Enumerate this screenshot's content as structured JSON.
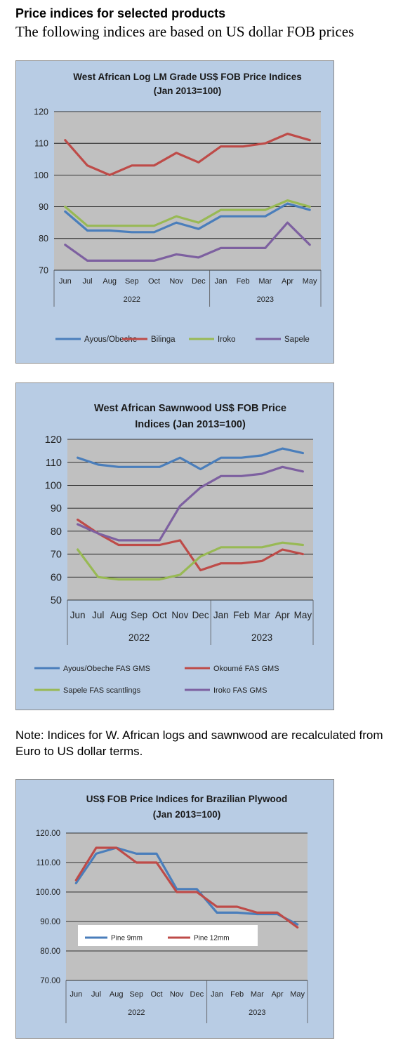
{
  "page": {
    "heading": "Price indices for selected products",
    "subheading": "The following indices are based on US dollar FOB prices",
    "note": "Note: Indices for W. African logs and sawnwood are recalculated from Euro to US dollar terms."
  },
  "chart_data": [
    {
      "type": "line",
      "title": "West African Log LM Grade US$ FOB Price Indices",
      "subtitle": "(Jan 2013=100)",
      "categories": [
        "Jun",
        "Jul",
        "Aug",
        "Sep",
        "Oct",
        "Nov",
        "Dec",
        "Jan",
        "Feb",
        "Mar",
        "Apr",
        "May"
      ],
      "year_groups": [
        {
          "label": "2022",
          "span": 7
        },
        {
          "label": "2023",
          "span": 5
        }
      ],
      "ylim": [
        70,
        120
      ],
      "yticks": [
        "120",
        "110",
        "100",
        "90",
        "80",
        "70"
      ],
      "grid": true,
      "legend_position": "bottom",
      "series": [
        {
          "name": "Ayous/Obeche",
          "color": "#4a7ebb",
          "values": [
            88.5,
            82.5,
            82.5,
            82,
            82,
            85,
            83,
            87,
            87,
            87,
            91,
            89
          ]
        },
        {
          "name": "Bilinga",
          "color": "#be4b48",
          "values": [
            111,
            103,
            100,
            103,
            103,
            107,
            104,
            109,
            109,
            110,
            113,
            111
          ]
        },
        {
          "name": "Iroko",
          "color": "#98b954",
          "values": [
            90,
            84,
            84,
            84,
            84,
            87,
            85,
            89,
            89,
            89,
            92,
            90
          ]
        },
        {
          "name": "Sapele",
          "color": "#7d60a0",
          "values": [
            78,
            73,
            73,
            73,
            73,
            75,
            74,
            77,
            77,
            77,
            85,
            78
          ]
        }
      ]
    },
    {
      "type": "line",
      "title": "West African Sawnwood US$ FOB Price",
      "subtitle": "Indices (Jan 2013=100)",
      "categories": [
        "Jun",
        "Jul",
        "Aug",
        "Sep",
        "Oct",
        "Nov",
        "Dec",
        "Jan",
        "Feb",
        "Mar",
        "Apr",
        "May"
      ],
      "year_groups": [
        {
          "label": "2022",
          "span": 7
        },
        {
          "label": "2023",
          "span": 5
        }
      ],
      "ylim": [
        50,
        120
      ],
      "yticks": [
        "120",
        "110",
        "100",
        "90",
        "80",
        "70",
        "60",
        "50"
      ],
      "grid": true,
      "legend_position": "bottom",
      "series": [
        {
          "name": "Ayous/Obeche  FAS GMS",
          "color": "#4a7ebb",
          "values": [
            112,
            109,
            108,
            108,
            108,
            112,
            107,
            112,
            112,
            113,
            116,
            114
          ]
        },
        {
          "name": "Okoumé  FAS GMS",
          "color": "#be4b48",
          "values": [
            85,
            79,
            74,
            74,
            74,
            76,
            63,
            66,
            66,
            67,
            72,
            70
          ]
        },
        {
          "name": "Sapele FAS scantlings",
          "color": "#98b954",
          "values": [
            72,
            60,
            59,
            59,
            59,
            61,
            69,
            73,
            73,
            73,
            75,
            74
          ]
        },
        {
          "name": "Iroko FAS GMS",
          "color": "#7d60a0",
          "values": [
            83,
            79,
            76,
            76,
            76,
            91,
            99,
            104,
            104,
            105,
            108,
            106
          ]
        }
      ]
    },
    {
      "type": "line",
      "title": "US$ FOB Price Indices for Brazilian Plywood",
      "subtitle": "(Jan 2013=100)",
      "categories": [
        "Jun",
        "Jul",
        "Aug",
        "Sep",
        "Oct",
        "Nov",
        "Dec",
        "Jan",
        "Feb",
        "Mar",
        "Apr",
        "May"
      ],
      "year_groups": [
        {
          "label": "2022",
          "span": 7
        },
        {
          "label": "2023",
          "span": 5
        }
      ],
      "ylim": [
        70,
        120
      ],
      "yticks": [
        "120.00",
        "110.00",
        "100.00",
        "90.00",
        "80.00",
        "70.00"
      ],
      "grid": true,
      "legend_position": "inside-bottom-left",
      "series": [
        {
          "name": "Pine 9mm",
          "color": "#4a7ebb",
          "values": [
            103,
            113,
            115,
            113,
            113,
            101,
            101,
            93,
            93,
            92.5,
            92.5,
            89
          ]
        },
        {
          "name": "Pine 12mm",
          "color": "#be4b48",
          "values": [
            104,
            115,
            115,
            110,
            110,
            100,
            100,
            95,
            95,
            93,
            93,
            88
          ]
        }
      ]
    }
  ]
}
